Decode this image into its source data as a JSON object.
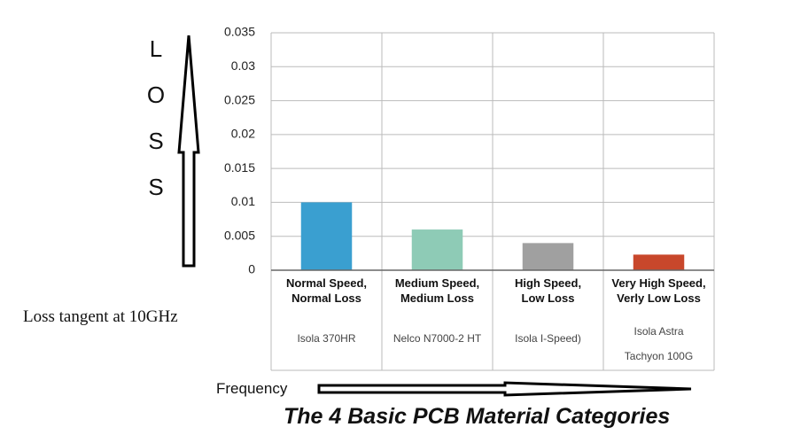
{
  "chart_data": {
    "type": "bar",
    "title": "The 4 Basic PCB Material Categories",
    "y_axis_label": "LOSS",
    "side_note": "Loss tangent at 10GHz",
    "x_axis_label": "Frequency",
    "categories": [
      "Normal Speed,\nNormal Loss",
      "Medium Speed,\nMedium Loss",
      "High Speed,\nLow Loss",
      "Very High Speed,\nVerly Low Loss"
    ],
    "materials": [
      "Isola 370HR",
      "Nelco N7000-2 HT",
      "Isola I-Speed)",
      "Isola Astra\nTachyon 100G"
    ],
    "values": [
      0.01,
      0.006,
      0.004,
      0.0023
    ],
    "colors": [
      "#3a9fd0",
      "#8ecbb6",
      "#a0a0a0",
      "#c8472b"
    ],
    "ylim": [
      0,
      0.035
    ],
    "yticks": [
      0,
      0.005,
      0.01,
      0.015,
      0.02,
      0.025,
      0.03,
      0.035
    ],
    "grid": true
  }
}
